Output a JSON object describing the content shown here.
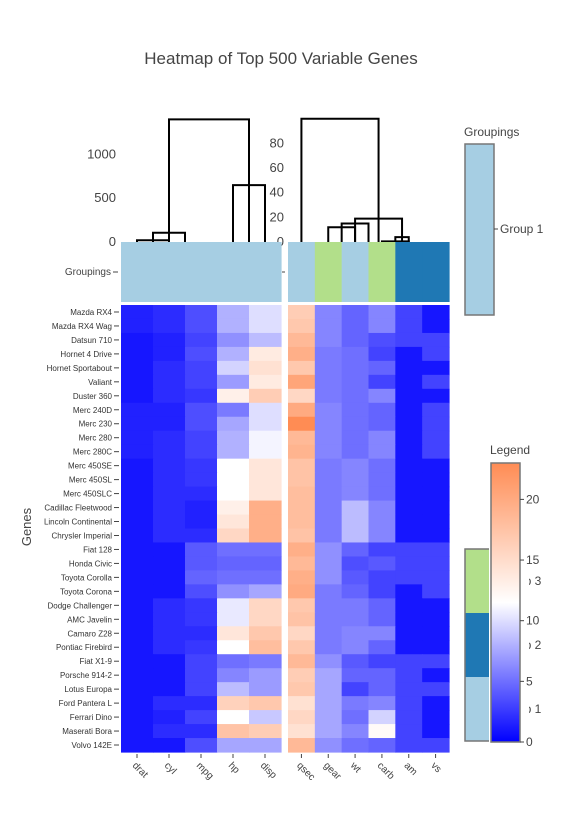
{
  "chart_data": {
    "type": "heatmap",
    "title": "Heatmap of Top 500 Variable Genes",
    "ylabel": "Genes",
    "groupings_row_label": "Groupings",
    "left_dendrogram_ticks": [
      "0",
      "500",
      "1000"
    ],
    "right_dendrogram_ticks": [
      "0",
      "20",
      "40",
      "60",
      "80"
    ],
    "columns_left": [
      "drat",
      "cyl",
      "mpg",
      "hp",
      "disp"
    ],
    "columns_right": [
      "qsec",
      "gear",
      "wt",
      "carb",
      "am",
      "vs"
    ],
    "rows": [
      "Mazda RX4",
      "Mazda RX4 Wag",
      "Datsun 710",
      "Hornet 4 Drive",
      "Hornet Sportabout",
      "Valiant",
      "Duster 360",
      "Merc 240D",
      "Merc 230",
      "Merc 280",
      "Merc 280C",
      "Merc 450SE",
      "Merc 450SL",
      "Merc 450SLC",
      "Cadillac Fleetwood",
      "Lincoln Continental",
      "Chrysler Imperial",
      "Fiat 128",
      "Honda Civic",
      "Toyota Corolla",
      "Toyota Corona",
      "Dodge Challenger",
      "AMC Javelin",
      "Camaro Z28",
      "Pontiac Firebird",
      "Fiat X1-9",
      "Porsche 914-2",
      "Lotus Europa",
      "Ford Pantera L",
      "Ferrari Dino",
      "Maserati Bora",
      "Volvo 142E"
    ],
    "column_groups_left": [
      1,
      1,
      1,
      1,
      1
    ],
    "column_groups_right": [
      1,
      3,
      1,
      3,
      2,
      2
    ],
    "values_left": [
      [
        1.5,
        2.0,
        3.5,
        8.0,
        10.0
      ],
      [
        1.5,
        2.0,
        3.5,
        8.0,
        10.0
      ],
      [
        1.0,
        1.5,
        3.0,
        6.5,
        8.5
      ],
      [
        1.0,
        1.5,
        3.5,
        8.0,
        13.5
      ],
      [
        1.0,
        2.0,
        3.0,
        9.5,
        14.5
      ],
      [
        1.0,
        2.0,
        3.0,
        7.0,
        13.5
      ],
      [
        1.0,
        2.0,
        2.5,
        13.0,
        16.5
      ],
      [
        1.5,
        1.5,
        3.5,
        5.5,
        10.0
      ],
      [
        1.5,
        1.5,
        3.5,
        7.5,
        10.0
      ],
      [
        1.5,
        2.0,
        3.0,
        8.0,
        11.0
      ],
      [
        1.5,
        2.0,
        3.0,
        8.0,
        11.0
      ],
      [
        1.0,
        2.0,
        2.5,
        11.5,
        14.0
      ],
      [
        1.0,
        2.0,
        2.5,
        11.5,
        14.0
      ],
      [
        1.0,
        2.0,
        2.0,
        11.5,
        14.0
      ],
      [
        1.0,
        2.0,
        1.5,
        13.0,
        19.5
      ],
      [
        1.0,
        2.0,
        1.5,
        14.0,
        19.5
      ],
      [
        1.0,
        2.0,
        2.0,
        15.5,
        19.5
      ],
      [
        1.0,
        1.0,
        4.0,
        5.0,
        5.0
      ],
      [
        1.0,
        1.0,
        4.0,
        4.5,
        4.5
      ],
      [
        1.0,
        1.0,
        4.5,
        5.0,
        5.0
      ],
      [
        1.0,
        1.0,
        3.5,
        6.5,
        7.5
      ],
      [
        1.0,
        2.0,
        2.5,
        10.5,
        15.5
      ],
      [
        1.0,
        2.0,
        2.5,
        10.5,
        15.5
      ],
      [
        1.0,
        2.0,
        2.0,
        14.0,
        17.0
      ],
      [
        1.0,
        2.0,
        2.5,
        11.5,
        18.0
      ],
      [
        1.0,
        1.0,
        3.0,
        5.0,
        5.5
      ],
      [
        1.0,
        1.0,
        3.0,
        6.0,
        7.0
      ],
      [
        1.0,
        1.0,
        3.0,
        8.5,
        7.0
      ],
      [
        1.0,
        2.0,
        2.0,
        16.0,
        17.0
      ],
      [
        1.0,
        1.5,
        3.0,
        11.5,
        9.0
      ],
      [
        1.0,
        2.0,
        2.0,
        17.5,
        16.5
      ],
      [
        1.0,
        1.0,
        3.5,
        7.5,
        7.5
      ]
    ],
    "values_right": [
      [
        16.5,
        6.0,
        4.5,
        6.0,
        3.0,
        1.0
      ],
      [
        17.0,
        6.0,
        4.5,
        6.0,
        3.0,
        1.0
      ],
      [
        18.5,
        6.0,
        4.5,
        3.5,
        3.0,
        3.0
      ],
      [
        19.5,
        5.5,
        5.0,
        3.0,
        1.0,
        3.0
      ],
      [
        17.0,
        5.5,
        5.0,
        4.5,
        1.0,
        1.0
      ],
      [
        20.5,
        5.5,
        5.0,
        3.0,
        1.0,
        3.0
      ],
      [
        15.5,
        5.5,
        5.0,
        6.0,
        1.0,
        1.0
      ],
      [
        20.0,
        6.0,
        5.0,
        4.5,
        1.0,
        3.0
      ],
      [
        23.0,
        6.0,
        5.0,
        4.5,
        1.0,
        3.0
      ],
      [
        18.5,
        6.0,
        5.0,
        6.0,
        1.0,
        3.0
      ],
      [
        19.0,
        6.0,
        5.0,
        6.0,
        1.0,
        3.0
      ],
      [
        17.5,
        5.5,
        6.0,
        5.0,
        1.0,
        1.0
      ],
      [
        17.5,
        5.5,
        6.0,
        5.0,
        1.0,
        1.0
      ],
      [
        18.0,
        5.5,
        6.0,
        5.0,
        1.0,
        1.0
      ],
      [
        18.0,
        5.5,
        8.5,
        6.0,
        1.0,
        1.0
      ],
      [
        18.0,
        5.5,
        8.5,
        6.0,
        1.0,
        1.0
      ],
      [
        17.5,
        5.5,
        8.5,
        6.0,
        1.0,
        1.0
      ],
      [
        19.5,
        6.5,
        4.5,
        3.0,
        3.0,
        3.0
      ],
      [
        18.5,
        6.5,
        3.5,
        4.0,
        3.0,
        3.0
      ],
      [
        19.5,
        6.5,
        4.0,
        3.0,
        3.0,
        3.0
      ],
      [
        20.0,
        5.5,
        4.5,
        3.0,
        1.0,
        3.0
      ],
      [
        17.0,
        5.5,
        5.5,
        4.5,
        1.0,
        1.0
      ],
      [
        17.5,
        5.5,
        5.5,
        4.5,
        1.0,
        1.0
      ],
      [
        15.5,
        5.5,
        6.0,
        6.0,
        1.0,
        1.0
      ],
      [
        17.0,
        5.5,
        6.0,
        4.5,
        1.0,
        1.0
      ],
      [
        18.5,
        6.5,
        4.0,
        3.0,
        3.0,
        3.0
      ],
      [
        16.5,
        7.5,
        4.5,
        4.5,
        3.0,
        1.0
      ],
      [
        17.0,
        7.5,
        3.0,
        4.5,
        3.0,
        3.0
      ],
      [
        14.5,
        7.5,
        5.5,
        6.0,
        3.0,
        1.0
      ],
      [
        15.5,
        7.5,
        5.0,
        9.5,
        3.0,
        1.0
      ],
      [
        14.5,
        7.5,
        6.0,
        12.0,
        3.0,
        1.0
      ],
      [
        18.5,
        6.5,
        5.0,
        4.5,
        3.0,
        3.0
      ]
    ],
    "groupings_legend": {
      "title": "Groupings",
      "entries": [
        "Group 1",
        "Group 2",
        "Group 3"
      ],
      "colors": {
        "Group 1": "#a6cee3",
        "Group 2": "#1f78b4",
        "Group 3": "#b2df8a"
      }
    },
    "colorbar": {
      "title": "Legend",
      "range": [
        0,
        23
      ],
      "ticks": [
        "0",
        "5",
        "10",
        "15",
        "20"
      ],
      "colors": [
        "#0000ff",
        "#ffffff",
        "#ff8c54"
      ]
    },
    "left_dendrogram": [
      {
        "h": 1400,
        "l": 1,
        "r": 3.5
      },
      {
        "h": 650,
        "l": 3,
        "r": 4
      },
      {
        "h": 105,
        "l": 0.5,
        "r": 1.5
      },
      {
        "h": 20,
        "l": 0,
        "r": 1
      }
    ],
    "right_dendrogram": [
      {
        "h": 100,
        "l": 0,
        "r": 2.875
      },
      {
        "h": 19,
        "l": 2,
        "r": 3.75
      },
      {
        "h": 15,
        "l": 1.5,
        "r": 2.5
      },
      {
        "h": 12,
        "l": 1,
        "r": 2
      },
      {
        "h": 4,
        "l": 3.5,
        "r": 4
      },
      {
        "h": 0.5,
        "l": 3,
        "r": 4
      }
    ]
  }
}
